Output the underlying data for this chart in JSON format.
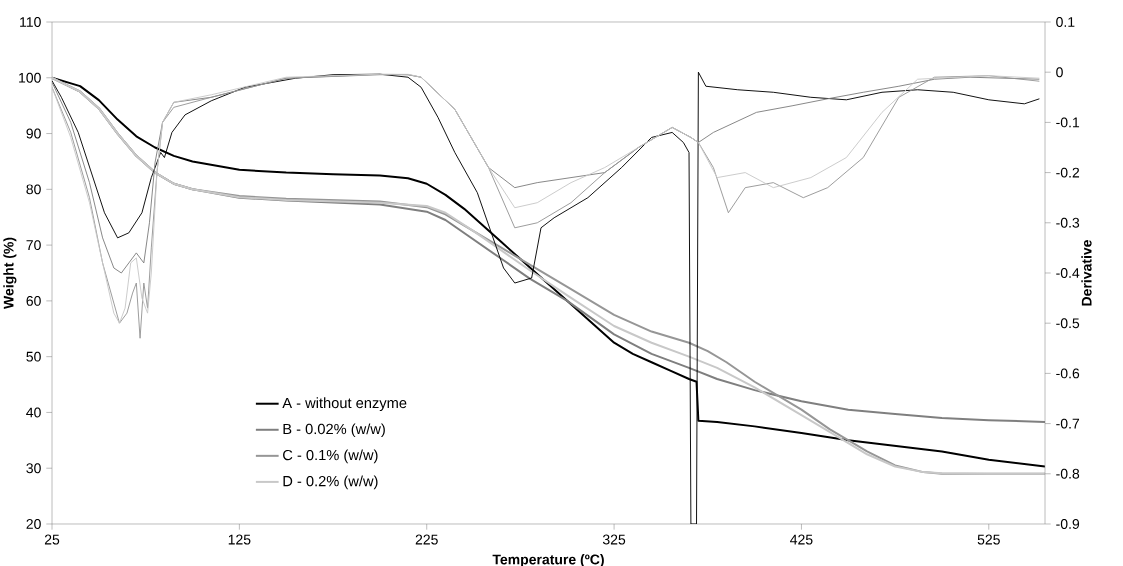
{
  "chart_data": {
    "type": "line",
    "xlabel": "Temperature (ºC)",
    "ylabel": "Weight (%)",
    "y2label": "Derivative",
    "xlim": [
      25,
      555
    ],
    "xticks": [
      25,
      125,
      225,
      325,
      425,
      525
    ],
    "ylim": [
      20,
      110
    ],
    "yticks": [
      20,
      30,
      40,
      50,
      60,
      70,
      80,
      90,
      100,
      110
    ],
    "y2lim": [
      -0.9,
      0.1
    ],
    "y2ticks": [
      -0.9,
      -0.8,
      -0.7,
      -0.6,
      -0.5,
      -0.4,
      -0.3,
      -0.2,
      -0.1,
      0,
      0.1
    ],
    "grid": false,
    "legend": "bottom left",
    "marker": "none",
    "line_style": "solid",
    "series": [
      {
        "name": "A - without enzyme",
        "color": "#000000",
        "x": [
          25,
          40,
          50,
          60,
          70,
          80,
          90,
          100,
          125,
          150,
          175,
          200,
          215,
          225,
          235,
          245,
          255,
          265,
          275,
          285,
          300,
          315,
          325,
          335,
          345,
          355,
          365,
          369,
          370,
          380,
          400,
          425,
          450,
          475,
          500,
          525,
          555
        ],
        "values": [
          100,
          98.5,
          96,
          92.5,
          89.5,
          87.5,
          86,
          85,
          83.5,
          83,
          82.7,
          82.5,
          82,
          81,
          79,
          76.5,
          73.5,
          70.5,
          67.5,
          64.5,
          60,
          55.5,
          52.5,
          50.5,
          49,
          47.5,
          46,
          45.5,
          38.5,
          38.3,
          37.5,
          36.3,
          35,
          34,
          33,
          31.5,
          30.3
        ]
      },
      {
        "name": "B - 0.02% (w/w)",
        "color": "#7f7f7f",
        "x": [
          25,
          40,
          50,
          60,
          70,
          80,
          90,
          100,
          125,
          150,
          200,
          225,
          235,
          250,
          265,
          280,
          300,
          325,
          345,
          365,
          380,
          400,
          425,
          450,
          475,
          500,
          525,
          555
        ],
        "values": [
          100,
          97.5,
          94.5,
          90,
          86,
          83,
          81,
          80,
          78.5,
          78,
          77.3,
          76,
          74.5,
          71,
          67.5,
          64,
          60,
          54,
          50.5,
          48,
          46,
          44,
          42,
          40.5,
          39.7,
          39,
          38.6,
          38.3
        ]
      },
      {
        "name": "C - 0.1% (w/w)",
        "color": "#969696",
        "x": [
          25,
          40,
          50,
          60,
          70,
          80,
          90,
          100,
          125,
          150,
          200,
          225,
          235,
          250,
          265,
          280,
          300,
          325,
          345,
          365,
          375,
          385,
          400,
          425,
          440,
          460,
          475,
          490,
          500,
          525,
          555
        ],
        "values": [
          100,
          97.5,
          94.5,
          90,
          86,
          83,
          81,
          80,
          78.8,
          78.3,
          77.8,
          76.8,
          75.5,
          72.5,
          69.5,
          66.5,
          62.5,
          57.5,
          54.5,
          52.5,
          51,
          49,
          45.5,
          40.5,
          37,
          33,
          30.5,
          29.3,
          29,
          29,
          29
        ]
      },
      {
        "name": "D - 0.2% (w/w)",
        "color": "#c8c8c8",
        "x": [
          25,
          40,
          50,
          60,
          70,
          80,
          90,
          100,
          125,
          150,
          200,
          225,
          235,
          250,
          265,
          280,
          300,
          325,
          345,
          365,
          380,
          400,
          425,
          440,
          460,
          475,
          490,
          500,
          525,
          555
        ],
        "values": [
          100,
          97.5,
          94.5,
          90,
          86,
          83,
          81,
          80,
          78.6,
          78.1,
          77.6,
          77,
          75.8,
          72.5,
          69,
          65.5,
          61,
          55.5,
          52.5,
          50,
          48,
          44.5,
          39.5,
          36.5,
          32.5,
          30.3,
          29.3,
          29.1,
          29,
          29
        ]
      },
      {
        "axis": "y2",
        "color": "#000000",
        "x": [
          25,
          30,
          39,
          46,
          53,
          60,
          66,
          73,
          78,
          83,
          85,
          89,
          96,
          110,
          128,
          155,
          175,
          200,
          215,
          222,
          231,
          240,
          252,
          266,
          272,
          281,
          286,
          293,
          311,
          329,
          345,
          356,
          362,
          365,
          366,
          369,
          370,
          374,
          391,
          410,
          430,
          449,
          468,
          487,
          506,
          525,
          544,
          552
        ],
        "values": [
          -0.017,
          -0.05,
          -0.12,
          -0.2,
          -0.28,
          -0.33,
          -0.32,
          -0.28,
          -0.21,
          -0.16,
          -0.17,
          -0.12,
          -0.085,
          -0.057,
          -0.03,
          -0.012,
          -0.005,
          -0.004,
          -0.01,
          -0.03,
          -0.09,
          -0.16,
          -0.24,
          -0.39,
          -0.42,
          -0.41,
          -0.31,
          -0.29,
          -0.25,
          -0.19,
          -0.13,
          -0.12,
          -0.14,
          -0.16,
          -0.9,
          -0.9,
          0,
          -0.028,
          -0.035,
          -0.04,
          -0.05,
          -0.055,
          -0.04,
          -0.035,
          -0.04,
          -0.055,
          -0.063,
          -0.053
        ]
      },
      {
        "axis": "y2",
        "color": "#7f7f7f",
        "x": [
          25,
          35,
          45,
          52,
          58,
          62,
          66,
          70,
          74,
          77,
          80,
          84,
          90,
          110,
          150,
          200,
          215,
          222,
          240,
          258,
          272,
          284,
          302,
          320,
          338,
          356,
          366,
          370,
          378,
          401,
          420,
          439,
          458,
          477,
          496,
          515,
          552
        ],
        "values": [
          -0.02,
          -0.1,
          -0.22,
          -0.33,
          -0.39,
          -0.4,
          -0.38,
          -0.36,
          -0.38,
          -0.3,
          -0.18,
          -0.1,
          -0.06,
          -0.05,
          -0.012,
          -0.005,
          -0.005,
          -0.01,
          -0.074,
          -0.19,
          -0.23,
          -0.22,
          -0.21,
          -0.2,
          -0.15,
          -0.11,
          -0.13,
          -0.14,
          -0.12,
          -0.08,
          -0.067,
          -0.053,
          -0.04,
          -0.028,
          -0.014,
          -0.01,
          -0.014
        ]
      },
      {
        "axis": "y2",
        "color": "#969696",
        "x": [
          25,
          35,
          45,
          52,
          58,
          61,
          65,
          68,
          70,
          72,
          74,
          76,
          78,
          81,
          84,
          90,
          110,
          150,
          200,
          215,
          222,
          240,
          258,
          272,
          284,
          302,
          320,
          338,
          356,
          366,
          370,
          378,
          386,
          395,
          410,
          426,
          439,
          458,
          477,
          496,
          525,
          552
        ],
        "values": [
          -0.03,
          -0.12,
          -0.25,
          -0.38,
          -0.46,
          -0.5,
          -0.48,
          -0.44,
          -0.42,
          -0.53,
          -0.42,
          -0.47,
          -0.35,
          -0.2,
          -0.1,
          -0.07,
          -0.05,
          -0.012,
          -0.004,
          -0.005,
          -0.01,
          -0.074,
          -0.19,
          -0.31,
          -0.3,
          -0.26,
          -0.2,
          -0.15,
          -0.11,
          -0.13,
          -0.14,
          -0.19,
          -0.28,
          -0.23,
          -0.22,
          -0.25,
          -0.23,
          -0.17,
          -0.05,
          -0.01,
          -0.007,
          -0.018
        ]
      },
      {
        "axis": "y2",
        "color": "#c8c8c8",
        "x": [
          25,
          35,
          45,
          52,
          58,
          61,
          64,
          67,
          70,
          73,
          76,
          78,
          81,
          84,
          90,
          110,
          150,
          200,
          215,
          222,
          240,
          258,
          272,
          284,
          302,
          320,
          338,
          356,
          366,
          370,
          380,
          395,
          410,
          430,
          449,
          468,
          487,
          525,
          552
        ],
        "values": [
          -0.03,
          -0.13,
          -0.26,
          -0.38,
          -0.48,
          -0.5,
          -0.47,
          -0.38,
          -0.37,
          -0.45,
          -0.48,
          -0.4,
          -0.2,
          -0.1,
          -0.06,
          -0.045,
          -0.01,
          -0.004,
          -0.004,
          -0.01,
          -0.074,
          -0.19,
          -0.27,
          -0.26,
          -0.22,
          -0.19,
          -0.15,
          -0.11,
          -0.13,
          -0.14,
          -0.21,
          -0.2,
          -0.23,
          -0.21,
          -0.17,
          -0.08,
          -0.014,
          -0.007,
          -0.012
        ]
      }
    ]
  }
}
